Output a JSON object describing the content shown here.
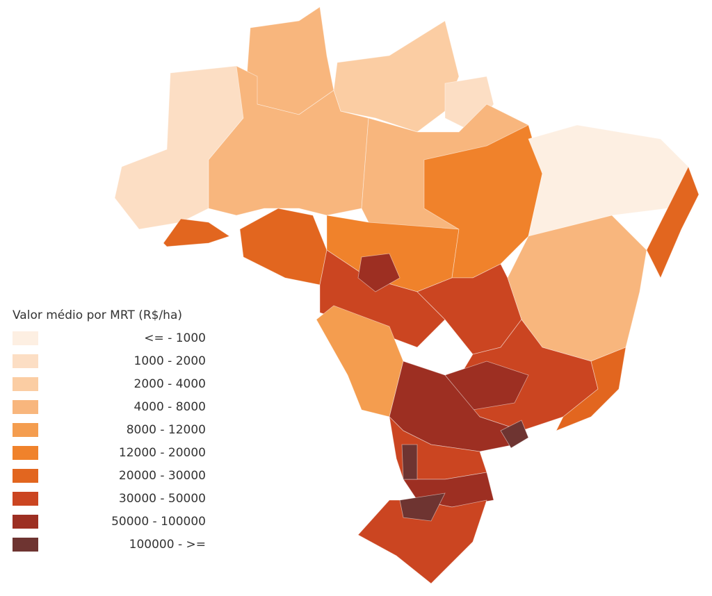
{
  "legend": {
    "title": "Valor médio por MRT (R$/ha)",
    "items": [
      {
        "label": "<= - 1000",
        "color": "#fdefe2"
      },
      {
        "label": "1000 - 2000",
        "color": "#fcdec4"
      },
      {
        "label": "2000 - 4000",
        "color": "#fbcda3"
      },
      {
        "label": "4000 - 8000",
        "color": "#f8b67d"
      },
      {
        "label": "8000 - 12000",
        "color": "#f49d4f"
      },
      {
        "label": "12000 - 20000",
        "color": "#f0822b"
      },
      {
        "label": "20000 - 30000",
        "color": "#e2661f"
      },
      {
        "label": "30000 - 50000",
        "color": "#cb4521"
      },
      {
        "label": "50000 - 100000",
        "color": "#9d2f22"
      },
      {
        "label": "100000 - >=",
        "color": "#6e3431"
      }
    ]
  }
}
